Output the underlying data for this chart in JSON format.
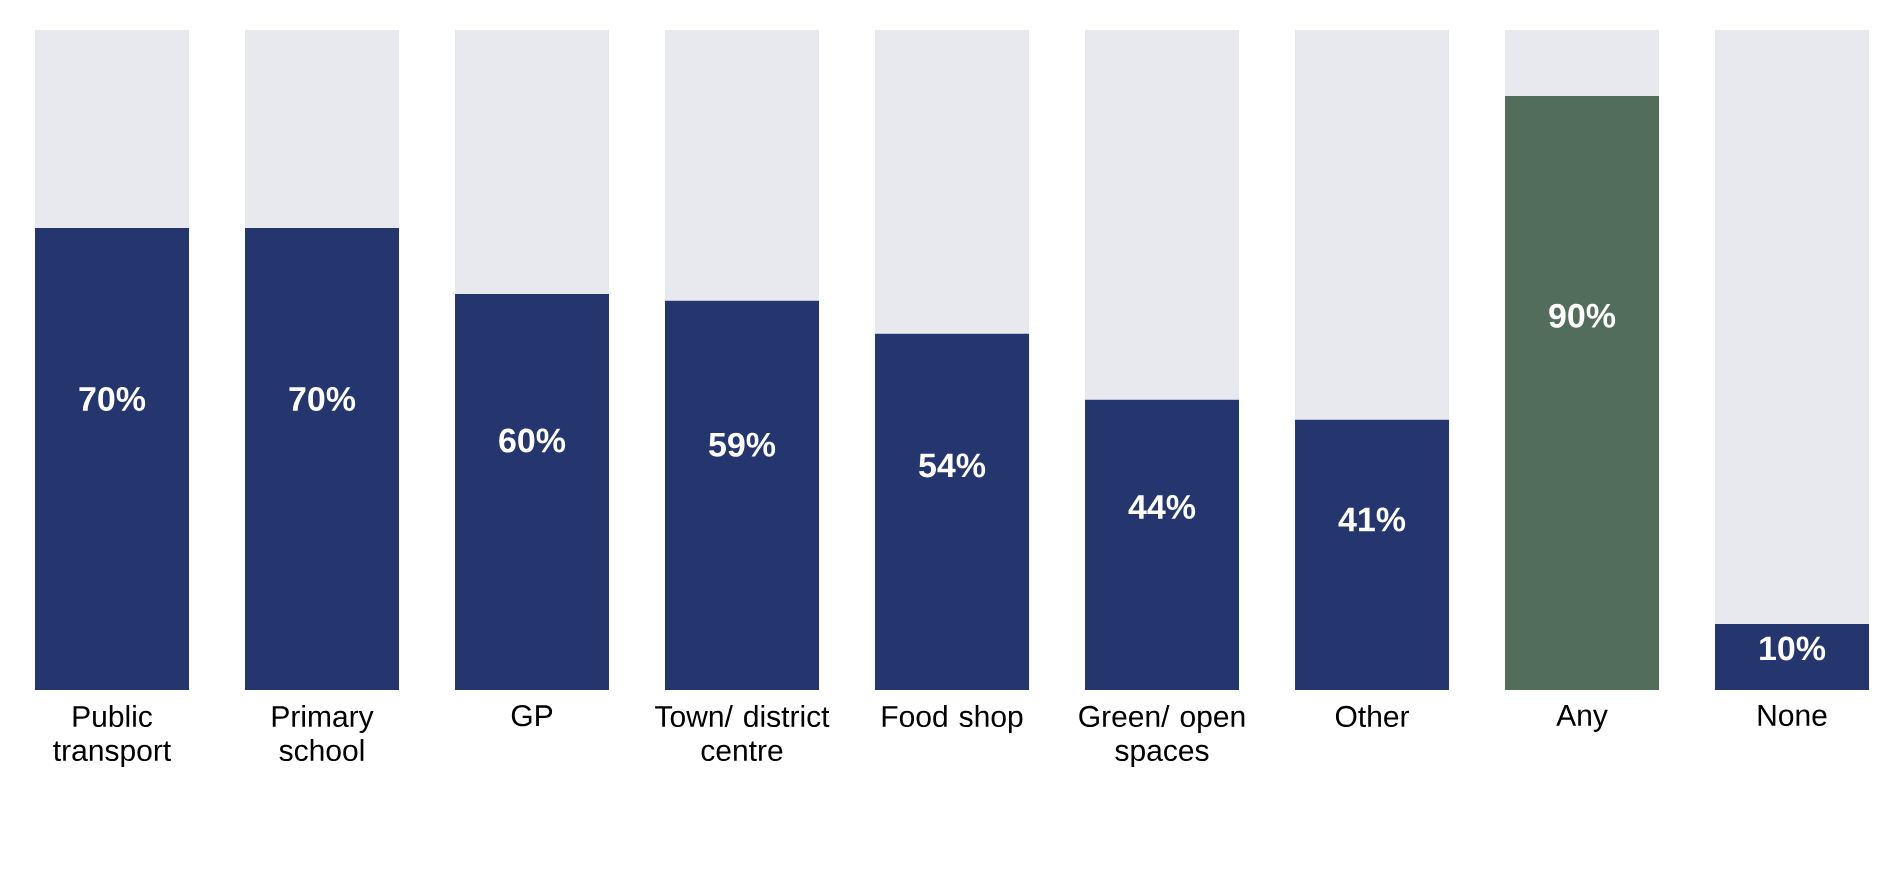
{
  "chart_data": {
    "type": "bar",
    "stacked": true,
    "ylim": [
      0,
      100
    ],
    "categories": [
      "Public transport",
      "Primary school",
      "GP",
      "Town/ district centre",
      "Food shop",
      "Green/ open spaces",
      "Other",
      "Any",
      "None"
    ],
    "series": [
      {
        "colors": [
          "#25366f",
          "#25366f",
          "#25366f",
          "#25366f",
          "#25366f",
          "#25366f",
          "#25366f",
          "#526e5a",
          "#25366f"
        ],
        "values": [
          70,
          70,
          60,
          59,
          54,
          44,
          41,
          90,
          10
        ],
        "value_labels": [
          "70%",
          "70%",
          "60%",
          "59%",
          "54%",
          "44%",
          "41%",
          "90%",
          "10%"
        ]
      },
      {
        "color": "#e8e9ef",
        "values": [
          30,
          30,
          40,
          41,
          46,
          56,
          59,
          10,
          90
        ]
      }
    ]
  }
}
